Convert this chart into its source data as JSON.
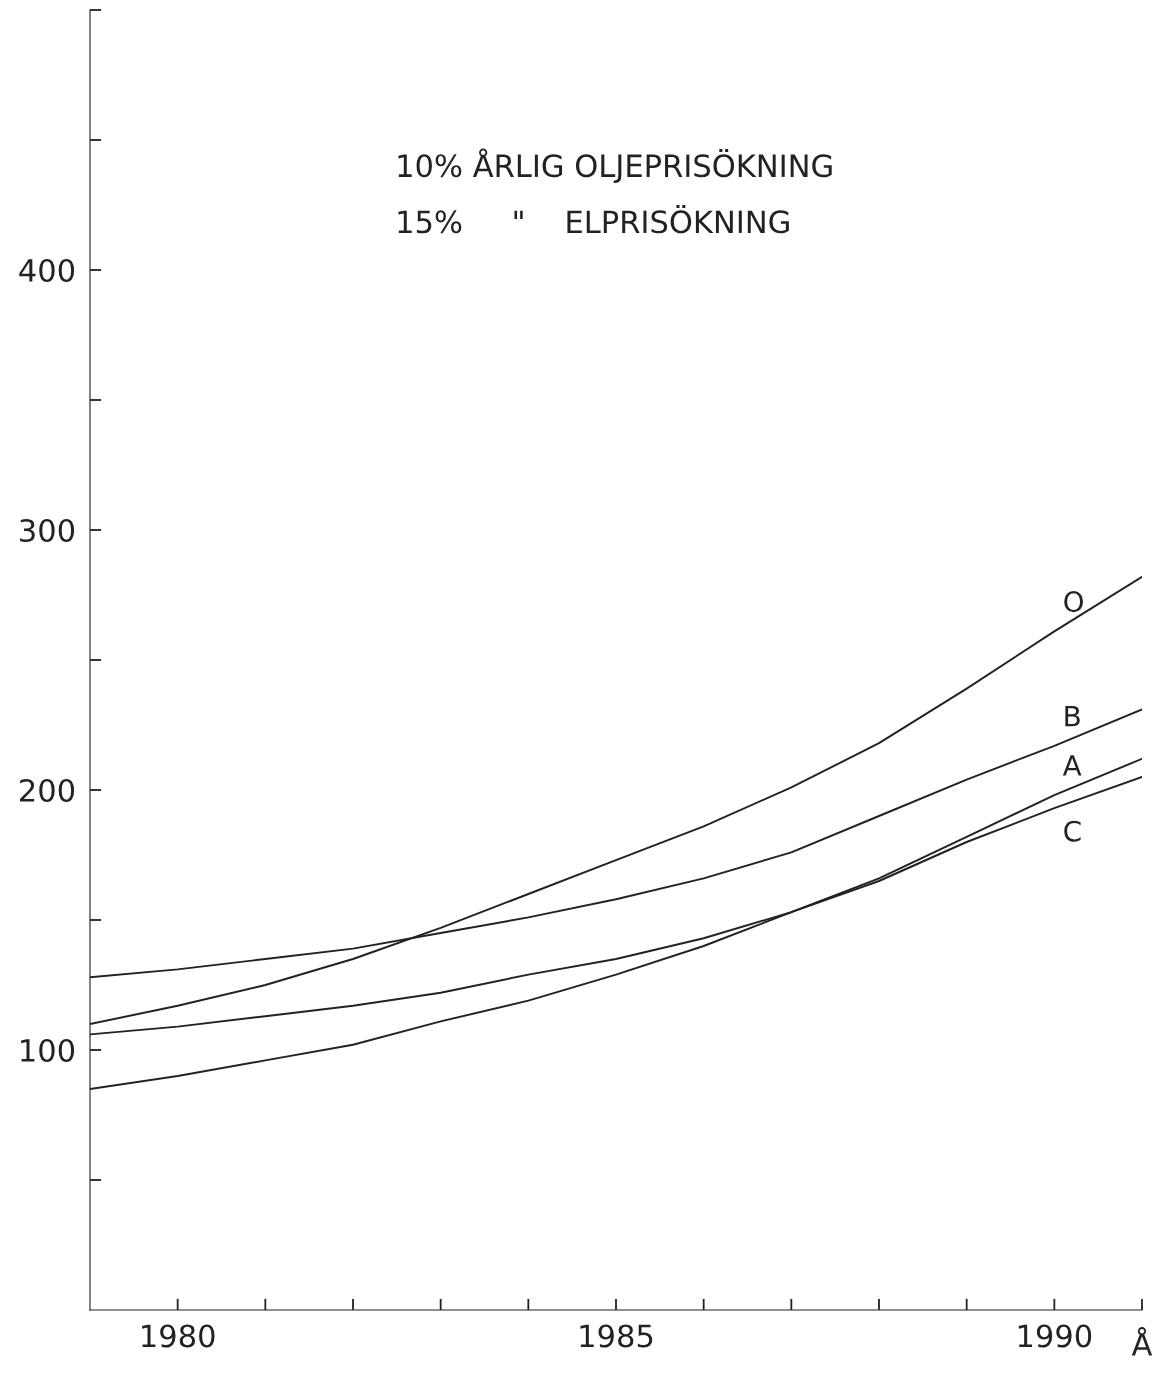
{
  "chart_data": {
    "type": "line",
    "x": [
      1979,
      1980,
      1981,
      1982,
      1983,
      1984,
      1985,
      1986,
      1987,
      1988,
      1989,
      1990,
      1991
    ],
    "xlabel": "Å",
    "series": [
      {
        "name": "O",
        "color": "#222222",
        "values": [
          110,
          117,
          125,
          135,
          147,
          160,
          173,
          186,
          201,
          218,
          239,
          261,
          282
        ]
      },
      {
        "name": "B",
        "color": "#222222",
        "values": [
          128,
          131,
          135,
          139,
          145,
          151,
          158,
          166,
          176,
          190,
          204,
          217,
          231
        ]
      },
      {
        "name": "A",
        "color": "#222222",
        "values": [
          106,
          109,
          113,
          117,
          122,
          129,
          135,
          143,
          153,
          166,
          182,
          198,
          212
        ]
      },
      {
        "name": "C",
        "color": "#222222",
        "values": [
          85,
          90,
          96,
          102,
          111,
          119,
          129,
          140,
          153,
          165,
          180,
          193,
          205
        ]
      }
    ],
    "annotations": [
      "10% ÅRLIG OLJEPRISÖKNING",
      "15%     \"    ELPRISÖKNING"
    ],
    "xlim": [
      1979,
      1991
    ],
    "xticks": [
      1980,
      {
        "value": 1981,
        "label": null
      },
      {
        "value": 1982,
        "label": null
      },
      {
        "value": 1983,
        "label": null
      },
      {
        "value": 1984,
        "label": null
      },
      1985,
      {
        "value": 1986,
        "label": null
      },
      {
        "value": 1987,
        "label": null
      },
      {
        "value": 1988,
        "label": null
      },
      {
        "value": 1989,
        "label": null
      },
      1990,
      {
        "value": 1991,
        "label": null
      }
    ],
    "ylim": [
      0,
      500
    ],
    "yticks": [
      {
        "value": 50,
        "label": null
      },
      100,
      {
        "value": 150,
        "label": null
      },
      200,
      {
        "value": 250,
        "label": null
      },
      300,
      {
        "value": 350,
        "label": null
      },
      400,
      {
        "value": 450,
        "label": null
      },
      {
        "value": 500,
        "label": null
      }
    ],
    "grid": false,
    "legend": false,
    "marker": "none",
    "line_style": "solid"
  }
}
